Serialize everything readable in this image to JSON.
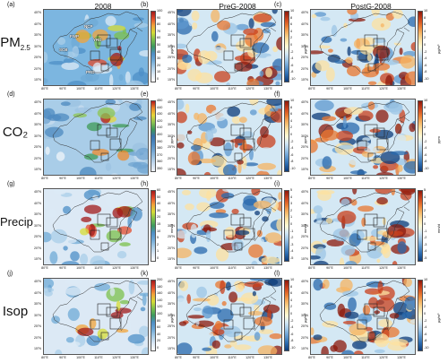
{
  "columns": {
    "a_title": "2008",
    "b_title": "PreG-2008",
    "c_title": "PostG-2008"
  },
  "rows": {
    "pm25": {
      "label_main": "PM",
      "label_sub": "2.5"
    },
    "co2": {
      "label": "CO₂"
    },
    "precip": {
      "label": "Precip"
    },
    "isop": {
      "label": "Isop"
    }
  },
  "panel_tags": [
    "(a)",
    "(b)",
    "(c)",
    "(d)",
    "(e)",
    "(f)",
    "(g)",
    "(h)",
    "(i)",
    "(j)",
    "(k)",
    "(l)"
  ],
  "region_labels": [
    "NCP",
    "FWP",
    "YRD",
    "SCB",
    "PRD"
  ],
  "lat_ticks": [
    "45°N",
    "40°N",
    "35°N",
    "30°N",
    "25°N",
    "20°N",
    "15°N"
  ],
  "lon_ticks": [
    "80°E",
    "90°E",
    "100°E",
    "110°E",
    "120°E",
    "130°E"
  ],
  "colorbars": {
    "pm25_abs": {
      "ticks": [
        "100",
        "90",
        "80",
        "70",
        "60",
        "50",
        "40",
        "30",
        "20",
        "10",
        "0"
      ],
      "unit": "μg/m³"
    },
    "co2_abs": {
      "ticks": [
        "450",
        "440",
        "430",
        "420",
        "410",
        "400",
        "390",
        "380",
        "370",
        "360",
        "350"
      ],
      "unit": "ppm"
    },
    "precip_abs": {
      "ticks": [
        "60",
        "50",
        "40",
        "30",
        "20",
        "15",
        "10",
        "5",
        "2",
        "1",
        "0"
      ],
      "unit": "mm/d"
    },
    "isop_abs": {
      "ticks": [
        "200",
        "180",
        "160",
        "140",
        "120",
        "100",
        "80",
        "60",
        "40",
        "20",
        "0"
      ],
      "unit": "μg/m³"
    },
    "diff10": {
      "ticks": [
        "10",
        "8",
        "6",
        "4",
        "2",
        "0",
        "-2",
        "-4",
        "-6",
        "-8",
        "-10"
      ],
      "unit_pm": "μg/m³",
      "unit_co2": "ppm",
      "unit_isop": "μg/m³"
    },
    "diff5": {
      "ticks": [
        "5",
        "4",
        "3",
        "2",
        "1",
        "0",
        "-1",
        "-2",
        "-3",
        "-4",
        "-5"
      ],
      "unit": "mm/d"
    }
  },
  "colors": {
    "abs_scale": [
      "#ffffff",
      "#dce9f5",
      "#a9cde8",
      "#6fa9d6",
      "#4e8fc7",
      "#3c9a5e",
      "#7cc04b",
      "#d7dc36",
      "#f3a43a",
      "#e44b2c",
      "#a11a1a"
    ],
    "diff_scale": [
      "#0d3c7a",
      "#2a6aae",
      "#5e98cf",
      "#9cc5e6",
      "#d4e8f4",
      "#fffbd6",
      "#fde1a0",
      "#f6b463",
      "#e9772f",
      "#c9401c",
      "#8c1a0c"
    ],
    "co2_scale": [
      "#f0f4fa",
      "#c9dcef",
      "#9cc1e1",
      "#6fa3d0",
      "#4d89c0",
      "#3a73ad",
      "#3f9a56",
      "#8ec450",
      "#e7d63a",
      "#ef8a2c",
      "#b3181a"
    ]
  }
}
